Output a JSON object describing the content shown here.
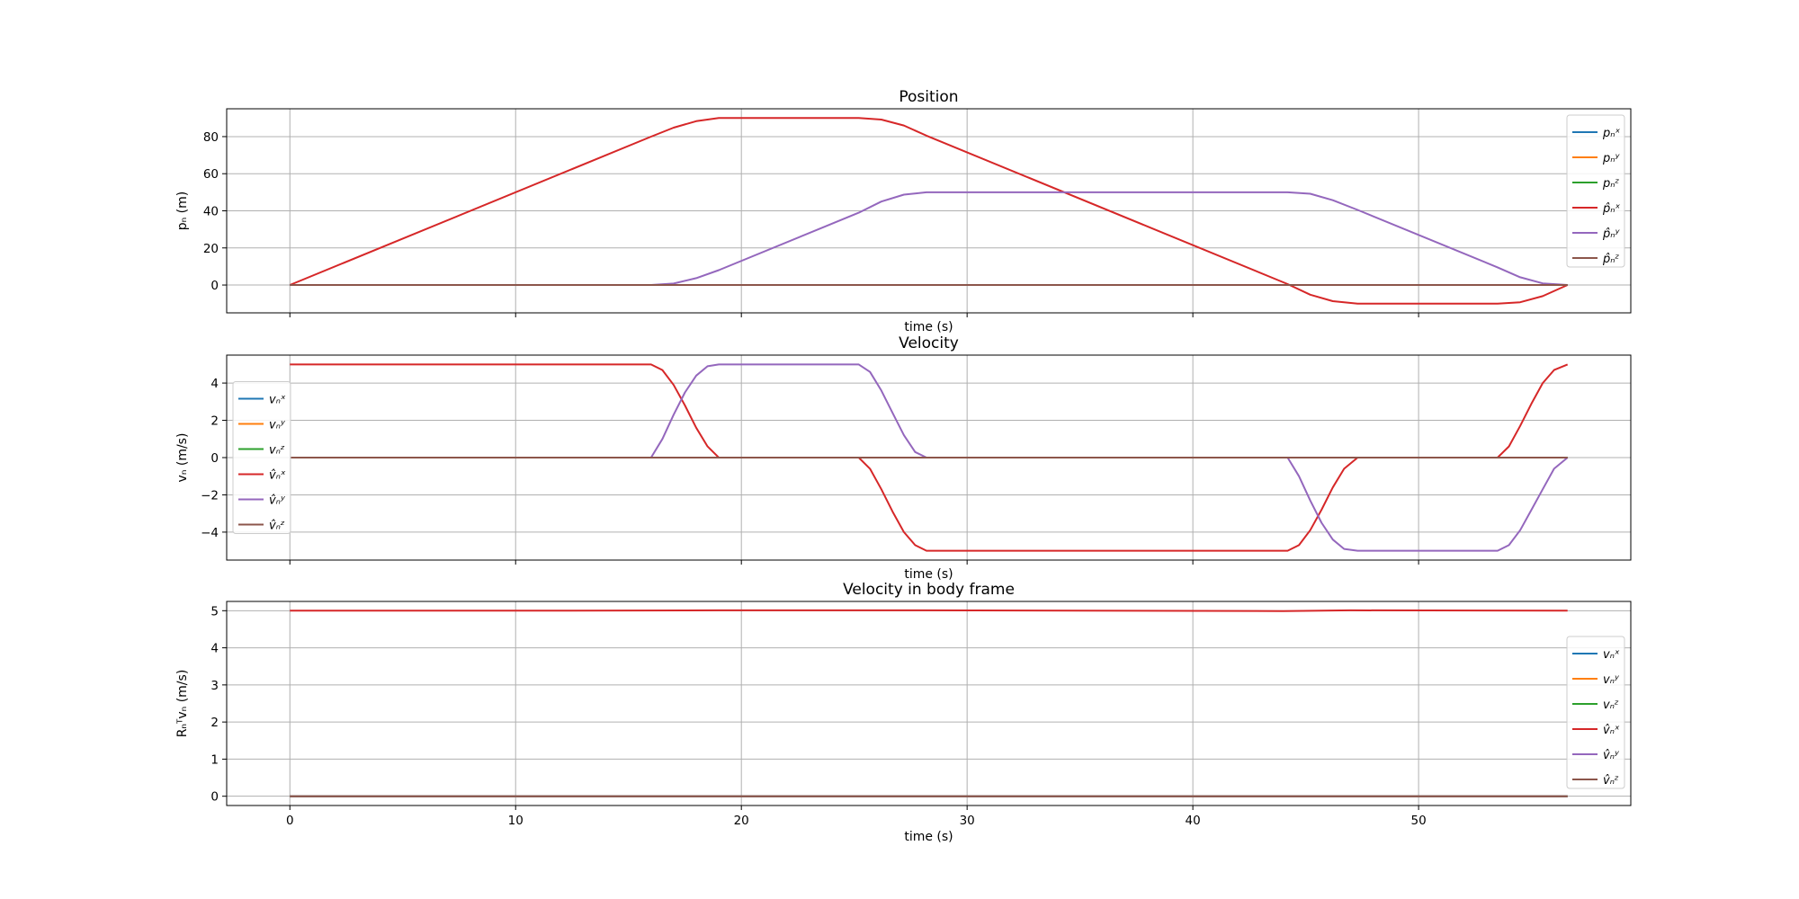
{
  "colors": {
    "x": "#1f77b4",
    "y": "#ff7f0e",
    "z": "#2ca02c",
    "xhat": "#d62728",
    "yhat": "#9467bd",
    "zhat": "#8c564b",
    "grid": "#b0b0b0"
  },
  "chart_data": [
    {
      "type": "line",
      "title": "Position",
      "xlabel": "time (s)",
      "ylabel": "pₙ (m)",
      "xlim": [
        -2.8,
        59.4
      ],
      "ylim": [
        -15,
        95
      ],
      "xticks": [
        0,
        10,
        20,
        30,
        40,
        50
      ],
      "show_xtick_labels": false,
      "yticks": [
        0,
        20,
        40,
        60,
        80
      ],
      "grid": true,
      "legend_position": "top-right",
      "series": [
        {
          "name": "pₙˣ",
          "color_key": "x",
          "x": [
            0,
            56.6
          ],
          "y": [
            0,
            0
          ]
        },
        {
          "name": "pₙʸ",
          "color_key": "y",
          "x": [
            0,
            56.6
          ],
          "y": [
            0,
            0
          ]
        },
        {
          "name": "pₙᶻ",
          "color_key": "z",
          "x": [
            0,
            56.6
          ],
          "y": [
            0,
            0
          ]
        },
        {
          "name": "p̂ₙˣ",
          "color_key": "xhat",
          "x": [
            0,
            16,
            17,
            18,
            19,
            25.2,
            26.2,
            27.2,
            28.2,
            44.2,
            45.2,
            46.2,
            47.3,
            53.5,
            54.5,
            55.5,
            56.6
          ],
          "y": [
            0,
            80,
            84.8,
            88.3,
            90,
            90,
            89.2,
            86,
            80.5,
            0.5,
            -5.2,
            -8.7,
            -10,
            -10,
            -9.3,
            -6,
            0
          ]
        },
        {
          "name": "p̂ₙʸ",
          "color_key": "yhat",
          "x": [
            0,
            16,
            17,
            18,
            19,
            25.2,
            26.2,
            27.2,
            28.2,
            44.2,
            45.2,
            46.2,
            47.3,
            53.5,
            54.5,
            55.5,
            56.6
          ],
          "y": [
            0,
            0,
            0.8,
            3.7,
            8,
            39,
            45,
            48.7,
            50,
            50,
            49.2,
            45.7,
            40.5,
            9.5,
            4.2,
            0.9,
            0
          ]
        },
        {
          "name": "p̂ₙᶻ",
          "color_key": "zhat",
          "x": [
            0,
            56.6
          ],
          "y": [
            0,
            0
          ]
        }
      ]
    },
    {
      "type": "line",
      "title": "Velocity",
      "xlabel": "time (s)",
      "ylabel": "vₙ (m/s)",
      "xlim": [
        -2.8,
        59.4
      ],
      "ylim": [
        -5.5,
        5.5
      ],
      "xticks": [
        0,
        10,
        20,
        30,
        40,
        50
      ],
      "show_xtick_labels": false,
      "yticks": [
        -4,
        -2,
        0,
        2,
        4
      ],
      "grid": true,
      "legend_position": "center-left",
      "series": [
        {
          "name": "vₙˣ",
          "color_key": "x",
          "x": [
            0,
            56.6
          ],
          "y": [
            0,
            0
          ]
        },
        {
          "name": "vₙʸ",
          "color_key": "y",
          "x": [
            0,
            56.6
          ],
          "y": [
            0,
            0
          ]
        },
        {
          "name": "vₙᶻ",
          "color_key": "z",
          "x": [
            0,
            56.6
          ],
          "y": [
            0,
            0
          ]
        },
        {
          "name": "v̂ₙˣ",
          "color_key": "xhat",
          "x": [
            0,
            16,
            16.5,
            17,
            17.5,
            18,
            18.5,
            19,
            25.2,
            25.7,
            26.2,
            26.7,
            27.2,
            27.7,
            28.2,
            44.2,
            44.7,
            45.2,
            45.7,
            46.2,
            46.7,
            47.3,
            53.5,
            54,
            54.5,
            55,
            55.5,
            56,
            56.6
          ],
          "y": [
            5,
            5,
            4.7,
            3.9,
            2.8,
            1.6,
            0.6,
            0,
            0,
            -0.6,
            -1.7,
            -2.9,
            -4,
            -4.7,
            -5,
            -5,
            -4.7,
            -3.9,
            -2.8,
            -1.6,
            -0.6,
            0,
            0,
            0.6,
            1.7,
            2.9,
            4,
            4.7,
            5
          ]
        },
        {
          "name": "v̂ₙʸ",
          "color_key": "yhat",
          "x": [
            0,
            16,
            16.5,
            17,
            17.5,
            18,
            18.5,
            19,
            25.2,
            25.7,
            26.2,
            26.7,
            27.2,
            27.7,
            28.2,
            44.2,
            44.7,
            45.2,
            45.7,
            46.2,
            46.7,
            47.3,
            53.5,
            54,
            54.5,
            55,
            55.5,
            56,
            56.6
          ],
          "y": [
            0,
            0,
            1,
            2.3,
            3.5,
            4.4,
            4.9,
            5,
            5,
            4.6,
            3.6,
            2.4,
            1.2,
            0.3,
            0,
            0,
            -1,
            -2.3,
            -3.5,
            -4.4,
            -4.9,
            -5,
            -5,
            -4.7,
            -3.9,
            -2.8,
            -1.7,
            -0.6,
            0
          ]
        },
        {
          "name": "v̂ₙᶻ",
          "color_key": "zhat",
          "x": [
            0,
            56.6
          ],
          "y": [
            0,
            0
          ]
        }
      ]
    },
    {
      "type": "line",
      "title": "Velocity in body frame",
      "xlabel": "time (s)",
      "ylabel": "Rₙᵀvₙ (m/s)",
      "xlim": [
        -2.8,
        59.4
      ],
      "ylim": [
        -0.25,
        5.25
      ],
      "xticks": [
        0,
        10,
        20,
        30,
        40,
        50
      ],
      "xtick_labels": [
        "0",
        "10",
        "20",
        "30",
        "40",
        "50"
      ],
      "show_xtick_labels": true,
      "yticks": [
        0,
        1,
        2,
        3,
        4,
        5
      ],
      "grid": true,
      "legend_position": "center-right",
      "series": [
        {
          "name": "vₙˣ",
          "color_key": "x",
          "x": [
            0,
            56.6
          ],
          "y": [
            0,
            0
          ]
        },
        {
          "name": "vₙʸ",
          "color_key": "y",
          "x": [
            0,
            56.6
          ],
          "y": [
            0,
            0
          ]
        },
        {
          "name": "vₙᶻ",
          "color_key": "z",
          "x": [
            0,
            56.6
          ],
          "y": [
            0,
            0
          ]
        },
        {
          "name": "v̂ₙˣ",
          "color_key": "xhat",
          "x": [
            0,
            10,
            19,
            28,
            35,
            44,
            47,
            56.6
          ],
          "y": [
            5,
            5,
            5.01,
            5.01,
            5,
            4.99,
            5.01,
            5
          ]
        },
        {
          "name": "v̂ₙʸ",
          "color_key": "yhat",
          "x": [
            0,
            56.6
          ],
          "y": [
            0,
            0
          ]
        },
        {
          "name": "v̂ₙᶻ",
          "color_key": "zhat",
          "x": [
            0,
            56.6
          ],
          "y": [
            0,
            0
          ]
        }
      ]
    }
  ]
}
